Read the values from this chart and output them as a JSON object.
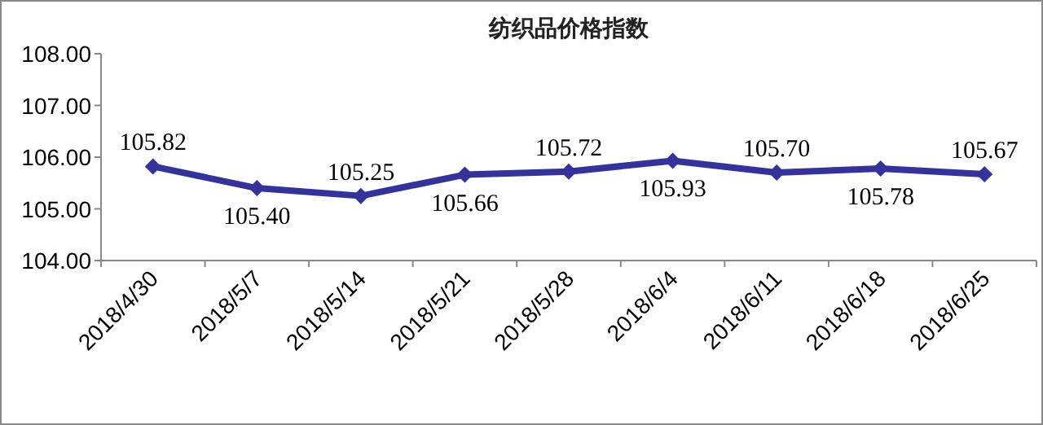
{
  "chart_data": {
    "type": "line",
    "title": "纺织品价格指数",
    "categories": [
      "2018/4/30",
      "2018/5/7",
      "2018/5/14",
      "2018/5/21",
      "2018/5/28",
      "2018/6/4",
      "2018/6/11",
      "2018/6/18",
      "2018/6/25"
    ],
    "series": [
      {
        "color": "#333399",
        "values": [
          105.82,
          105.4,
          105.25,
          105.66,
          105.72,
          105.93,
          105.7,
          105.78,
          105.67
        ],
        "value_labels": [
          "105.82",
          "105.40",
          "105.25",
          "105.66",
          "105.72",
          "105.93",
          "105.70",
          "105.78",
          "105.67"
        ]
      }
    ],
    "ylim": [
      104,
      108
    ],
    "yticks": [
      {
        "value": 104,
        "label": "104.00"
      },
      {
        "value": 105,
        "label": "105.00"
      },
      {
        "value": 106,
        "label": "106.00"
      },
      {
        "value": 107,
        "label": "107.00"
      },
      {
        "value": 108,
        "label": "108.00"
      }
    ],
    "marker": "diamond",
    "line_style": "solid",
    "grid": false
  }
}
